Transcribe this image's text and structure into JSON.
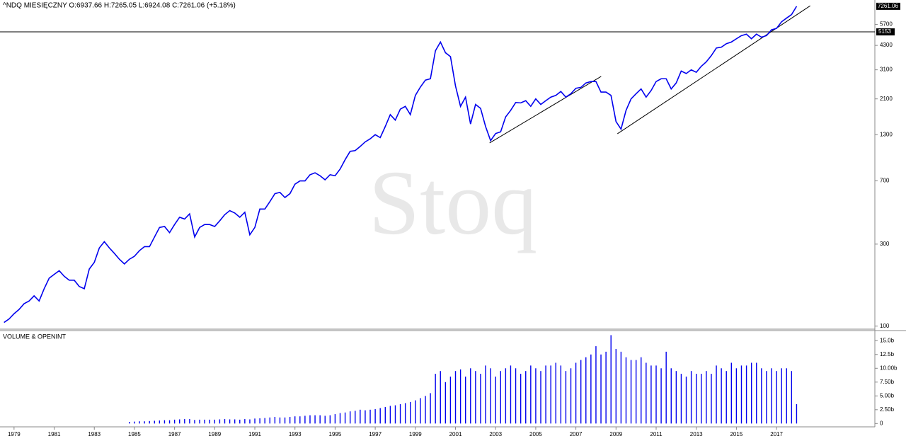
{
  "chart_data": [
    {
      "type": "line",
      "title": "^NDQ  MIESIĘCZNY  O:6937.66  H:7265.05  L:6924.08  C:7261.06  (+5.18%)",
      "watermark": "Stoq",
      "log_scale": true,
      "color": "#0000ee",
      "x": [
        1978.5,
        1978.75,
        1979,
        1979.25,
        1979.5,
        1979.75,
        1980,
        1980.25,
        1980.5,
        1980.75,
        1981,
        1981.25,
        1981.5,
        1981.75,
        1982,
        1982.25,
        1982.5,
        1982.75,
        1983,
        1983.25,
        1983.5,
        1983.75,
        1984,
        1984.25,
        1984.5,
        1984.75,
        1985,
        1985.25,
        1985.5,
        1985.75,
        1986,
        1986.25,
        1986.5,
        1986.75,
        1987,
        1987.25,
        1987.5,
        1987.75,
        1988,
        1988.25,
        1988.5,
        1988.75,
        1989,
        1989.25,
        1989.5,
        1989.75,
        1990,
        1990.25,
        1990.5,
        1990.75,
        1991,
        1991.25,
        1991.5,
        1991.75,
        1992,
        1992.25,
        1992.5,
        1992.75,
        1993,
        1993.25,
        1993.5,
        1993.75,
        1994,
        1994.25,
        1994.5,
        1994.75,
        1995,
        1995.25,
        1995.5,
        1995.75,
        1996,
        1996.25,
        1996.5,
        1996.75,
        1997,
        1997.25,
        1997.5,
        1997.75,
        1998,
        1998.25,
        1998.5,
        1998.75,
        1999,
        1999.25,
        1999.5,
        1999.75,
        2000,
        2000.25,
        2000.5,
        2000.75,
        2001,
        2001.25,
        2001.5,
        2001.75,
        2002,
        2002.25,
        2002.5,
        2002.75,
        2003,
        2003.25,
        2003.5,
        2003.75,
        2004,
        2004.25,
        2004.5,
        2004.75,
        2005,
        2005.25,
        2005.5,
        2005.75,
        2006,
        2006.25,
        2006.5,
        2006.75,
        2007,
        2007.25,
        2007.5,
        2007.75,
        2008,
        2008.25,
        2008.5,
        2008.75,
        2009,
        2009.25,
        2009.5,
        2009.75,
        2010,
        2010.25,
        2010.5,
        2010.75,
        2011,
        2011.25,
        2011.5,
        2011.75,
        2012,
        2012.25,
        2012.5,
        2012.75,
        2013,
        2013.25,
        2013.5,
        2013.75,
        2014,
        2014.25,
        2014.5,
        2014.75,
        2015,
        2015.25,
        2015.5,
        2015.75,
        2016,
        2016.25,
        2016.5,
        2016.75,
        2017,
        2017.25,
        2017.5,
        2017.75,
        2018
      ],
      "values": [
        105,
        110,
        118,
        125,
        135,
        140,
        150,
        140,
        165,
        190,
        200,
        210,
        195,
        185,
        185,
        170,
        165,
        215,
        235,
        285,
        310,
        285,
        265,
        245,
        230,
        245,
        255,
        275,
        290,
        290,
        330,
        375,
        380,
        350,
        390,
        430,
        420,
        450,
        330,
        375,
        390,
        390,
        380,
        410,
        445,
        470,
        455,
        430,
        460,
        340,
        375,
        480,
        480,
        530,
        590,
        600,
        560,
        590,
        670,
        700,
        700,
        760,
        780,
        750,
        710,
        760,
        750,
        820,
        930,
        1040,
        1050,
        1110,
        1180,
        1230,
        1300,
        1250,
        1450,
        1700,
        1580,
        1830,
        1900,
        1700,
        2200,
        2460,
        2700,
        2750,
        4000,
        4500,
        3900,
        3700,
        2500,
        1900,
        2150,
        1500,
        1950,
        1850,
        1450,
        1200,
        1320,
        1350,
        1650,
        1800,
        2000,
        1990,
        2050,
        1900,
        2100,
        1950,
        2050,
        2150,
        2200,
        2320,
        2150,
        2250,
        2420,
        2450,
        2600,
        2650,
        2650,
        2300,
        2300,
        2200,
        1550,
        1400,
        1800,
        2100,
        2250,
        2400,
        2150,
        2350,
        2650,
        2750,
        2750,
        2400,
        2600,
        3050,
        2950,
        3100,
        3000,
        3250,
        3450,
        3750,
        4150,
        4200,
        4400,
        4500,
        4700,
        4900,
        5000,
        4700,
        5000,
        4800,
        4900,
        5300,
        5400,
        5900,
        6200,
        6500,
        7261.06
      ],
      "xlim": [
        1978.3,
        2021.9
      ],
      "ylim": [
        96,
        7900
      ],
      "yticks": [
        100,
        300,
        700,
        1300,
        2100,
        3100,
        4300,
        5700
      ],
      "hline": {
        "value": 5153,
        "color": "#000000"
      },
      "trendlines": [
        {
          "x": [
            2002.7,
            2008.26
          ],
          "y": [
            1164,
            2838
          ]
        },
        {
          "x": [
            2009.07,
            2018.68
          ],
          "y": [
            1316,
            7310
          ]
        }
      ]
    },
    {
      "type": "bar",
      "title": "VOLUME & OPENINT",
      "color": "#0000ee",
      "x": [
        1978.5,
        1978.75,
        1979,
        1979.25,
        1979.5,
        1979.75,
        1980,
        1980.25,
        1980.5,
        1980.75,
        1981,
        1981.25,
        1981.5,
        1981.75,
        1982,
        1982.25,
        1982.5,
        1982.75,
        1983,
        1983.25,
        1983.5,
        1983.75,
        1984,
        1984.25,
        1984.5,
        1984.75,
        1985,
        1985.25,
        1985.5,
        1985.75,
        1986,
        1986.25,
        1986.5,
        1986.75,
        1987,
        1987.25,
        1987.5,
        1987.75,
        1988,
        1988.25,
        1988.5,
        1988.75,
        1989,
        1989.25,
        1989.5,
        1989.75,
        1990,
        1990.25,
        1990.5,
        1990.75,
        1991,
        1991.25,
        1991.5,
        1991.75,
        1992,
        1992.25,
        1992.5,
        1992.75,
        1993,
        1993.25,
        1993.5,
        1993.75,
        1994,
        1994.25,
        1994.5,
        1994.75,
        1995,
        1995.25,
        1995.5,
        1995.75,
        1996,
        1996.25,
        1996.5,
        1996.75,
        1997,
        1997.25,
        1997.5,
        1997.75,
        1998,
        1998.25,
        1998.5,
        1998.75,
        1999,
        1999.25,
        1999.5,
        1999.75,
        2000,
        2000.25,
        2000.5,
        2000.75,
        2001,
        2001.25,
        2001.5,
        2001.75,
        2002,
        2002.25,
        2002.5,
        2002.75,
        2003,
        2003.25,
        2003.5,
        2003.75,
        2004,
        2004.25,
        2004.5,
        2004.75,
        2005,
        2005.25,
        2005.5,
        2005.75,
        2006,
        2006.25,
        2006.5,
        2006.75,
        2007,
        2007.25,
        2007.5,
        2007.75,
        2008,
        2008.25,
        2008.5,
        2008.75,
        2009,
        2009.25,
        2009.5,
        2009.75,
        2010,
        2010.25,
        2010.5,
        2010.75,
        2011,
        2011.25,
        2011.5,
        2011.75,
        2012,
        2012.25,
        2012.5,
        2012.75,
        2013,
        2013.25,
        2013.5,
        2013.75,
        2014,
        2014.25,
        2014.5,
        2014.75,
        2015,
        2015.25,
        2015.5,
        2015.75,
        2016,
        2016.25,
        2016.5,
        2016.75,
        2017,
        2017.25,
        2017.5,
        2017.75,
        2018
      ],
      "values": [
        null,
        null,
        null,
        null,
        null,
        null,
        null,
        null,
        null,
        null,
        null,
        null,
        null,
        null,
        null,
        null,
        null,
        null,
        null,
        null,
        null,
        null,
        null,
        null,
        null,
        0.3,
        0.35,
        0.4,
        0.4,
        0.45,
        0.5,
        0.55,
        0.6,
        0.6,
        0.7,
        0.75,
        0.8,
        0.8,
        0.65,
        0.7,
        0.7,
        0.7,
        0.7,
        0.75,
        0.8,
        0.75,
        0.75,
        0.7,
        0.8,
        0.75,
        0.9,
        0.95,
        1.0,
        1.1,
        1.2,
        1.1,
        1.1,
        1.2,
        1.3,
        1.3,
        1.4,
        1.5,
        1.5,
        1.5,
        1.4,
        1.5,
        1.7,
        1.9,
        2.0,
        2.2,
        2.3,
        2.5,
        2.4,
        2.5,
        2.6,
        2.8,
        3.0,
        3.2,
        3.3,
        3.5,
        3.7,
        3.9,
        4.2,
        4.6,
        5.0,
        5.5,
        9.0,
        9.5,
        7.5,
        8.5,
        9.5,
        9.8,
        8.5,
        10.0,
        9.5,
        9.0,
        10.5,
        10.0,
        8.5,
        9.5,
        10.0,
        10.5,
        10.0,
        9.0,
        9.5,
        10.5,
        10.0,
        9.5,
        10.5,
        10.5,
        11.0,
        10.5,
        9.5,
        10.0,
        11.0,
        11.5,
        12.0,
        12.5,
        14.0,
        12.5,
        13.0,
        16.0,
        13.5,
        13.0,
        12.0,
        11.5,
        11.5,
        12.0,
        11.0,
        10.5,
        10.5,
        10.0,
        13.0,
        10.0,
        9.5,
        9.0,
        8.5,
        9.5,
        9.0,
        9.0,
        9.5,
        9.0,
        10.5,
        10.0,
        9.5,
        11.0,
        10.0,
        10.5,
        10.5,
        11.0,
        11.0,
        10.0,
        9.5,
        10.0,
        9.5,
        10.0,
        10.0,
        9.5,
        3.5
      ],
      "xlim": [
        1978.3,
        2021.9
      ],
      "xticks": [
        1979,
        1981,
        1983,
        1985,
        1987,
        1989,
        1991,
        1993,
        1995,
        1997,
        1999,
        2001,
        2003,
        2005,
        2007,
        2009,
        2011,
        2013,
        2015,
        2017
      ],
      "ylim": [
        -0.6,
        16.7
      ],
      "yticks": [
        0,
        {
          "value": 2.5,
          "label": "2.50b"
        },
        {
          "value": 5,
          "label": "5.00b"
        },
        {
          "value": 7.5,
          "label": "7.50b"
        },
        {
          "value": 10,
          "label": "10.00b"
        },
        {
          "value": 12.5,
          "label": "12.5b"
        },
        {
          "value": 15,
          "label": "15.0b"
        }
      ]
    }
  ]
}
